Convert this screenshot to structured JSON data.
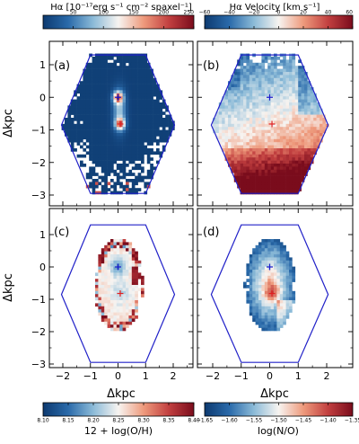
{
  "colorbars": {
    "halpha_flux": {
      "title": "Hα [10⁻¹⁷erg s⁻¹ cm⁻² spaxel⁻¹]",
      "min": 0,
      "max": 250,
      "ticks": [
        "50",
        "100",
        "150",
        "200",
        "250"
      ],
      "stops": [
        "#0d3a70",
        "#2a6aaa",
        "#8cbbd8",
        "#f7f4f1",
        "#ee9a7c",
        "#c24040",
        "#7a0c1c"
      ]
    },
    "halpha_velocity": {
      "title": "Hα Velocity [km s⁻¹]",
      "min": -60,
      "max": 60,
      "ticks": [
        "−60",
        "−40",
        "−20",
        "0",
        "20",
        "40",
        "60"
      ],
      "stops": [
        "#0d3a70",
        "#2a6aaa",
        "#8cbbd8",
        "#f7f4f1",
        "#ee9a7c",
        "#c24040",
        "#7a0c1c"
      ]
    },
    "metallicity": {
      "title": "12 + log(O/H)",
      "min": 8.1,
      "max": 8.4,
      "ticks": [
        "8.10",
        "8.15",
        "8.20",
        "8.25",
        "8.30",
        "8.35",
        "8.40"
      ],
      "stops": [
        "#0d3a70",
        "#2a6aaa",
        "#8cbbd8",
        "#f7f4f1",
        "#ee9a7c",
        "#c24040",
        "#7a0c1c"
      ]
    },
    "n_over_o": {
      "title": "log(N/O)",
      "min": -1.65,
      "max": -1.35,
      "ticks": [
        "−1.65",
        "−1.60",
        "−1.55",
        "−1.50",
        "−1.45",
        "−1.40",
        "−1.35"
      ],
      "stops": [
        "#0d3a70",
        "#2a6aaa",
        "#8cbbd8",
        "#f7f4f1",
        "#ee9a7c",
        "#c24040",
        "#7a0c1c"
      ]
    }
  },
  "panels": [
    {
      "label": "(a)",
      "map": "halpha_flux"
    },
    {
      "label": "(b)",
      "map": "halpha_velocity"
    },
    {
      "label": "(c)",
      "map": "metallicity"
    },
    {
      "label": "(d)",
      "map": "n_over_o"
    }
  ],
  "axes": {
    "xlabel": "Δkpc",
    "ylabel": "Δkpc",
    "xlim": [
      -2.5,
      2.5
    ],
    "ylim": [
      -3.3,
      1.5
    ],
    "xticks": [
      "−2",
      "−1",
      "0",
      "1",
      "2"
    ],
    "yticks": [
      "1",
      "0",
      "−1",
      "−2",
      "−3"
    ]
  },
  "field_hexagon_kpc": [
    [
      -1,
      1.3
    ],
    [
      1,
      1.3
    ],
    [
      2.05,
      -0.85
    ],
    [
      1,
      -2.95
    ],
    [
      -1,
      -2.95
    ],
    [
      -2.05,
      -0.85
    ]
  ],
  "markers": {
    "blue_cross_kpc": [
      0,
      0
    ],
    "red_cross_kpc": [
      0.08,
      -0.82
    ],
    "blue_color": "#1a1acc",
    "red_color": "#e02020"
  }
}
